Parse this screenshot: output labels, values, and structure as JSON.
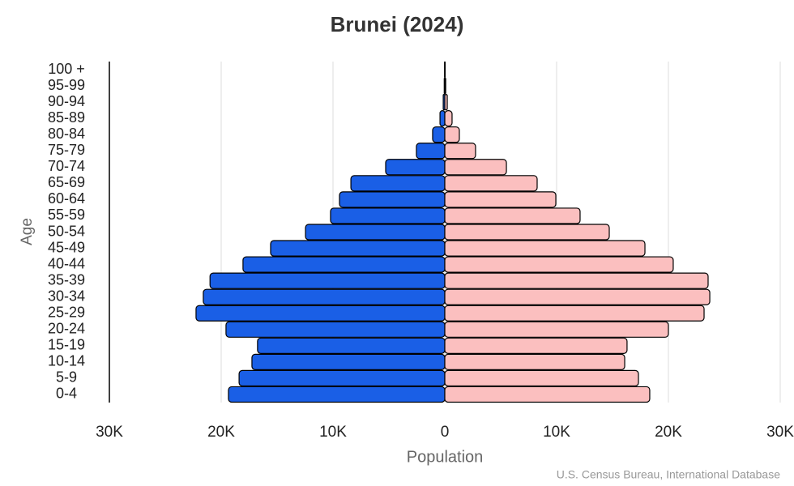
{
  "chart_data": {
    "type": "pyramid",
    "title": "Brunei (2024)",
    "x_label": "Population",
    "y_label": "Age",
    "source": "U.S. Census Bureau, International Database",
    "categories": [
      "0-4",
      "5-9",
      "10-14",
      "15-19",
      "20-24",
      "25-29",
      "30-34",
      "35-39",
      "40-44",
      "45-49",
      "50-54",
      "55-59",
      "60-64",
      "65-69",
      "70-74",
      "75-79",
      "80-84",
      "85-89",
      "90-94",
      "95-99",
      "100 +"
    ],
    "series": [
      {
        "color": "#1a5fe6",
        "side": "left",
        "values": [
          19350,
          18400,
          17250,
          16750,
          19570,
          22250,
          21600,
          21000,
          18050,
          15580,
          12460,
          10220,
          9420,
          8400,
          5290,
          2540,
          1090,
          430,
          140,
          50,
          20
        ]
      },
      {
        "color": "#fbbfbf",
        "side": "right",
        "values": [
          18330,
          17320,
          16090,
          16300,
          20000,
          23190,
          23700,
          23550,
          20430,
          17900,
          14710,
          12100,
          9930,
          8260,
          5510,
          2750,
          1300,
          650,
          220,
          80,
          30
        ]
      }
    ],
    "xlim": [
      -30000,
      30000
    ],
    "xticks": [
      {
        "value": -30000,
        "label": "30K"
      },
      {
        "value": -20000,
        "label": "20K"
      },
      {
        "value": -10000,
        "label": "10K"
      },
      0,
      {
        "value": 10000,
        "label": "10K"
      },
      {
        "value": 20000,
        "label": "20K"
      },
      {
        "value": 30000,
        "label": "30K"
      }
    ],
    "grid": true
  }
}
